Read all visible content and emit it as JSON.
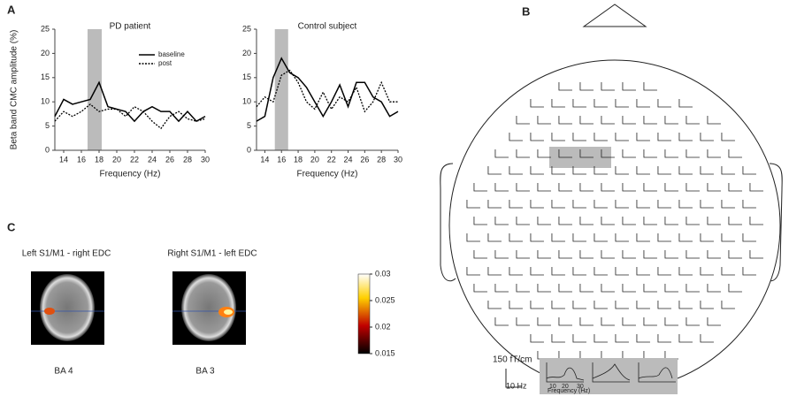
{
  "panels": {
    "a": "A",
    "b": "B",
    "c": "C"
  },
  "chart_data": [
    {
      "type": "line",
      "title": "PD patient",
      "x_label": "Frequency (Hz)",
      "y_label": "Beta band CMC amplitude (%)",
      "x": [
        13,
        14,
        15,
        16,
        17,
        18,
        19,
        20,
        21,
        22,
        23,
        24,
        25,
        26,
        27,
        28,
        29,
        30
      ],
      "series": [
        {
          "name": "baseline",
          "color": "#000000",
          "style": "solid",
          "values": [
            7,
            10.5,
            9.5,
            10,
            10.5,
            14,
            9,
            8.5,
            8,
            6,
            8,
            9,
            8,
            8,
            6,
            8,
            6,
            7
          ]
        },
        {
          "name": "post",
          "color": "#000000",
          "style": "dotted",
          "values": [
            6,
            8,
            7,
            8,
            9.5,
            8,
            8.5,
            8.5,
            7,
            9,
            8,
            6,
            4.5,
            7,
            8,
            6.5,
            6,
            6.5
          ]
        }
      ],
      "highlight_band": [
        16.7,
        18.3
      ],
      "xlim": [
        13,
        30
      ],
      "xticks": [
        14,
        16,
        18,
        20,
        22,
        24,
        26,
        28,
        30
      ],
      "ylim": [
        0,
        25
      ],
      "yticks": [
        0,
        5,
        10,
        15,
        20,
        25
      ],
      "legend": "upper right"
    },
    {
      "type": "line",
      "title": "Control subject",
      "x_label": "Frequency (Hz)",
      "x": [
        13,
        14,
        15,
        16,
        17,
        18,
        19,
        20,
        21,
        22,
        23,
        24,
        25,
        26,
        27,
        28,
        29,
        30
      ],
      "series": [
        {
          "name": null,
          "color": "#000000",
          "style": "solid",
          "values": [
            6,
            7,
            15,
            19,
            16,
            15,
            13,
            10,
            7,
            10,
            13.5,
            9,
            14,
            14,
            11,
            10,
            7,
            8
          ]
        },
        {
          "name": null,
          "color": "#000000",
          "style": "dotted",
          "values": [
            9,
            11,
            10,
            15.5,
            16.5,
            14,
            10,
            8.5,
            12,
            8.5,
            11,
            10,
            13,
            8,
            10,
            14,
            10,
            10
          ]
        }
      ],
      "highlight_band": [
        15.2,
        16.8
      ],
      "xlim": [
        13,
        30
      ],
      "xticks": [
        14,
        16,
        18,
        20,
        22,
        24,
        26,
        28,
        30
      ],
      "ylim": [
        0,
        25
      ],
      "yticks": [
        0,
        5,
        10,
        15,
        20,
        25
      ]
    }
  ],
  "panel_c": {
    "left_title": "Left S1/M1 - right EDC",
    "right_title": "Right S1/M1 - left EDC",
    "left_area": "BA 4",
    "right_area": "BA 3",
    "colorbar": {
      "lim": [
        0.015,
        0.03
      ],
      "ticks": [
        0.03,
        0.025,
        0.02,
        0.015
      ]
    }
  },
  "panel_b": {
    "scale_amp": "150 fT/cm",
    "scale_freq": "10  Hz",
    "inset_ticks": [
      "10",
      "20",
      "30"
    ],
    "inset_label": "Frequency (Hz)"
  }
}
